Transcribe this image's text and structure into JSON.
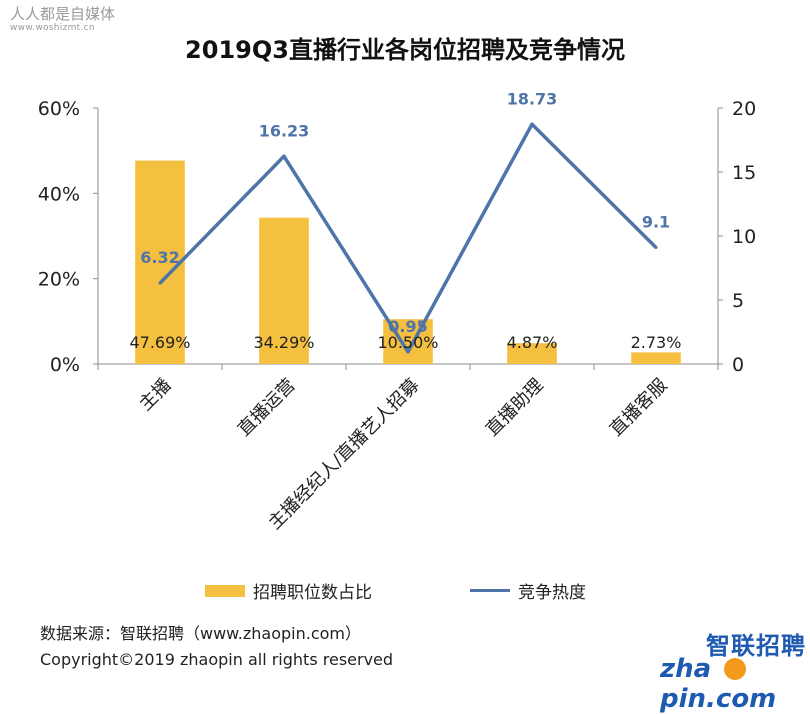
{
  "watermark": {
    "line1": "人人都是自媒体",
    "line2": "www.woshizmt.cn"
  },
  "title": "2019Q3直播行业各岗位招聘及竞争情况",
  "chart_data": {
    "type": "bar",
    "title": "2019Q3直播行业各岗位招聘及竞争情况",
    "categories": [
      "主播",
      "直播运营",
      "主播经纪人/直播艺人招募",
      "直播助理",
      "直播客服"
    ],
    "series": [
      {
        "name": "招聘职位数占比",
        "type": "bar",
        "axis": "left",
        "values": [
          47.69,
          34.29,
          10.5,
          4.87,
          2.73
        ],
        "labels": [
          "47.69%",
          "34.29%",
          "10.50%",
          "4.87%",
          "2.73%"
        ],
        "color": "#f5bf3f"
      },
      {
        "name": "竞争热度",
        "type": "line",
        "axis": "right",
        "values": [
          6.32,
          16.23,
          0.95,
          18.73,
          9.1
        ],
        "labels": [
          "6.32",
          "16.23",
          "0.95",
          "18.73",
          "9.1"
        ],
        "color": "#4f74a8"
      }
    ],
    "left_axis": {
      "ylim": [
        0,
        60
      ],
      "ticks": [
        "0%",
        "20%",
        "40%",
        "60%"
      ]
    },
    "right_axis": {
      "ylim": [
        0,
        20
      ],
      "ticks": [
        "0",
        "5",
        "10",
        "15",
        "20"
      ]
    },
    "grid": false,
    "legend_position": "bottom"
  },
  "legend": {
    "bar": "招聘职位数占比",
    "line": "竞争热度"
  },
  "footer": {
    "source": "数据来源：智联招聘（www.zhaopin.com）",
    "copyright": "Copyright©2019 zhaopin all rights reserved"
  },
  "logo": {
    "cn": "智联招聘",
    "en": "zha pin.com"
  }
}
